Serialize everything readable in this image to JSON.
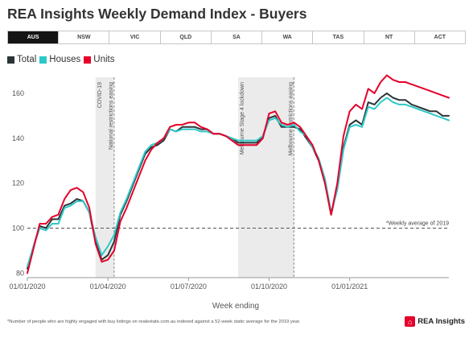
{
  "page": {
    "title": "REA Insights Weekly Demand Index - Buyers",
    "footnote": "*Number of people who are highly engaged with buy listings on realestate.com.au indexed against a 52-week static average for the 2019 year.",
    "brand": "REA Insights",
    "brand_icon": "rea-logo-icon",
    "brand_color": "#e4002b"
  },
  "tabs": [
    {
      "label": "AUS",
      "active": true
    },
    {
      "label": "NSW",
      "active": false
    },
    {
      "label": "VIC",
      "active": false
    },
    {
      "label": "QLD",
      "active": false
    },
    {
      "label": "SA",
      "active": false
    },
    {
      "label": "WA",
      "active": false
    },
    {
      "label": "TAS",
      "active": false
    },
    {
      "label": "NT",
      "active": false
    },
    {
      "label": "ACT",
      "active": false
    }
  ],
  "chart_data": {
    "type": "line",
    "xlabel": "Week ending",
    "ylabel": "",
    "ylim": [
      78,
      170
    ],
    "yticks": [
      80,
      100,
      120,
      140,
      160
    ],
    "xticks": [
      {
        "week": 0,
        "label": "01/01/2020"
      },
      {
        "week": 13,
        "label": "01/04/2020"
      },
      {
        "week": 26,
        "label": "01/07/2020"
      },
      {
        "week": 39,
        "label": "01/10/2020"
      },
      {
        "week": 52,
        "label": "01/01/2021"
      }
    ],
    "x_range": [
      0,
      68
    ],
    "grid": false,
    "reference_line": {
      "value": 100,
      "label": "*Weekly average of 2019"
    },
    "shaded_periods": [
      {
        "start": 11,
        "end": 14,
        "label": "COVID-19",
        "label2": "National restrictions easing"
      },
      {
        "start": 34,
        "end": 43,
        "label": "Melbourne Stage 4 lockdown",
        "label2": "Melbourne restrictions easing"
      }
    ],
    "series": [
      {
        "name": "Total",
        "color": "#2b3538",
        "values": [
          82,
          92,
          101,
          100,
          104,
          104,
          110,
          111,
          113,
          112,
          107,
          94,
          86,
          88,
          94,
          106,
          112,
          119,
          126,
          133,
          136,
          137,
          139,
          144,
          143,
          145,
          145,
          145,
          144,
          144,
          142,
          142,
          141,
          140,
          138,
          138,
          138,
          138,
          141,
          149,
          150,
          145,
          145,
          145,
          144,
          140,
          136,
          130,
          121,
          106,
          118,
          136,
          146,
          148,
          146,
          156,
          155,
          158,
          160,
          158,
          157,
          157,
          155,
          154,
          153,
          152,
          152,
          150,
          150
        ]
      },
      {
        "name": "Houses",
        "color": "#2ec8c8",
        "values": [
          83,
          92,
          100,
          99,
          102,
          102,
          109,
          110,
          112,
          112,
          107,
          96,
          88,
          92,
          97,
          107,
          113,
          120,
          127,
          134,
          137,
          138,
          140,
          144,
          143,
          144,
          144,
          144,
          143,
          143,
          142,
          142,
          141,
          140,
          139,
          139,
          139,
          139,
          141,
          148,
          149,
          146,
          145,
          146,
          143,
          141,
          136,
          131,
          122,
          107,
          117,
          135,
          145,
          146,
          145,
          154,
          153,
          156,
          158,
          156,
          155,
          155,
          154,
          153,
          152,
          151,
          150,
          149,
          148
        ]
      },
      {
        "name": "Units",
        "color": "#e4002b",
        "values": [
          80,
          91,
          102,
          102,
          105,
          106,
          113,
          117,
          118,
          116,
          109,
          93,
          85,
          86,
          90,
          103,
          109,
          116,
          123,
          130,
          135,
          138,
          140,
          145,
          146,
          146,
          147,
          147,
          145,
          144,
          142,
          142,
          141,
          139,
          137,
          137,
          137,
          137,
          140,
          151,
          152,
          147,
          146,
          147,
          145,
          141,
          137,
          130,
          120,
          106,
          120,
          141,
          152,
          155,
          153,
          162,
          160,
          165,
          168,
          166,
          165,
          165,
          164,
          163,
          162,
          161,
          160,
          159,
          158
        ]
      }
    ]
  }
}
